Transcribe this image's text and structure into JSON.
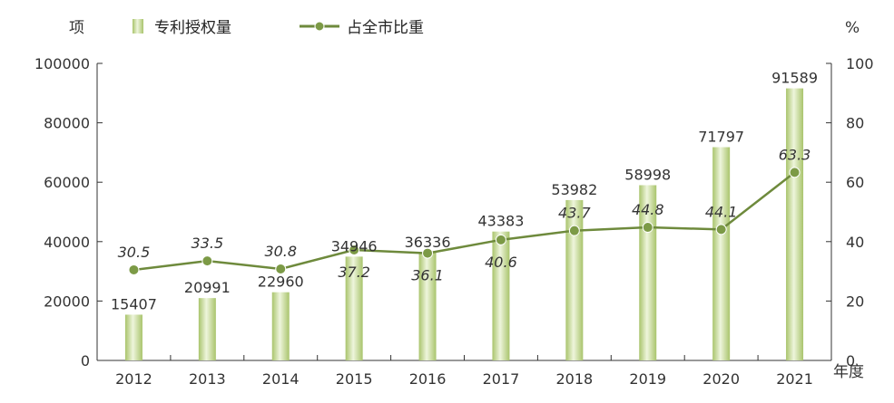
{
  "chart_data": {
    "type": "bar",
    "categories": [
      "2012",
      "2013",
      "2014",
      "2015",
      "2016",
      "2017",
      "2018",
      "2019",
      "2020",
      "2021"
    ],
    "series": [
      {
        "name": "专利授权量",
        "type": "bar",
        "axis": "left",
        "values": [
          15407,
          20991,
          22960,
          34946,
          36336,
          43383,
          53982,
          58998,
          71797,
          91589
        ]
      },
      {
        "name": "占全市比重",
        "type": "line",
        "axis": "right",
        "values": [
          30.5,
          33.5,
          30.8,
          37.2,
          36.1,
          40.6,
          43.7,
          44.8,
          44.1,
          63.3
        ]
      }
    ],
    "bar_labels": [
      "15407",
      "20991",
      "22960",
      "34946",
      "36336",
      "43383",
      "53982",
      "58998",
      "71797",
      "91589"
    ],
    "line_labels": [
      "30.5",
      "33.5",
      "30.8",
      "37.2",
      "36.1",
      "40.6",
      "43.7",
      "44.8",
      "44.1",
      "63.3"
    ],
    "line_label_position": [
      "above",
      "above",
      "above",
      "below",
      "below",
      "below",
      "above",
      "above",
      "above",
      "above"
    ],
    "ylabel_left": "项",
    "ylabel_right": "%",
    "xlabel": "年度",
    "ylim_left": [
      0,
      100000
    ],
    "yticks_left": [
      "0",
      "20000",
      "40000",
      "60000",
      "80000",
      "100000"
    ],
    "ylim_right": [
      0,
      100
    ],
    "yticks_right": [
      "0",
      "20",
      "40",
      "60",
      "80",
      "100"
    ],
    "grid": false,
    "legend_position": "top",
    "colors": {
      "bar": "#a9c46c",
      "bar_highlight": "#eef5dc",
      "line": "#6e8a3c",
      "axis": "#333333"
    }
  }
}
